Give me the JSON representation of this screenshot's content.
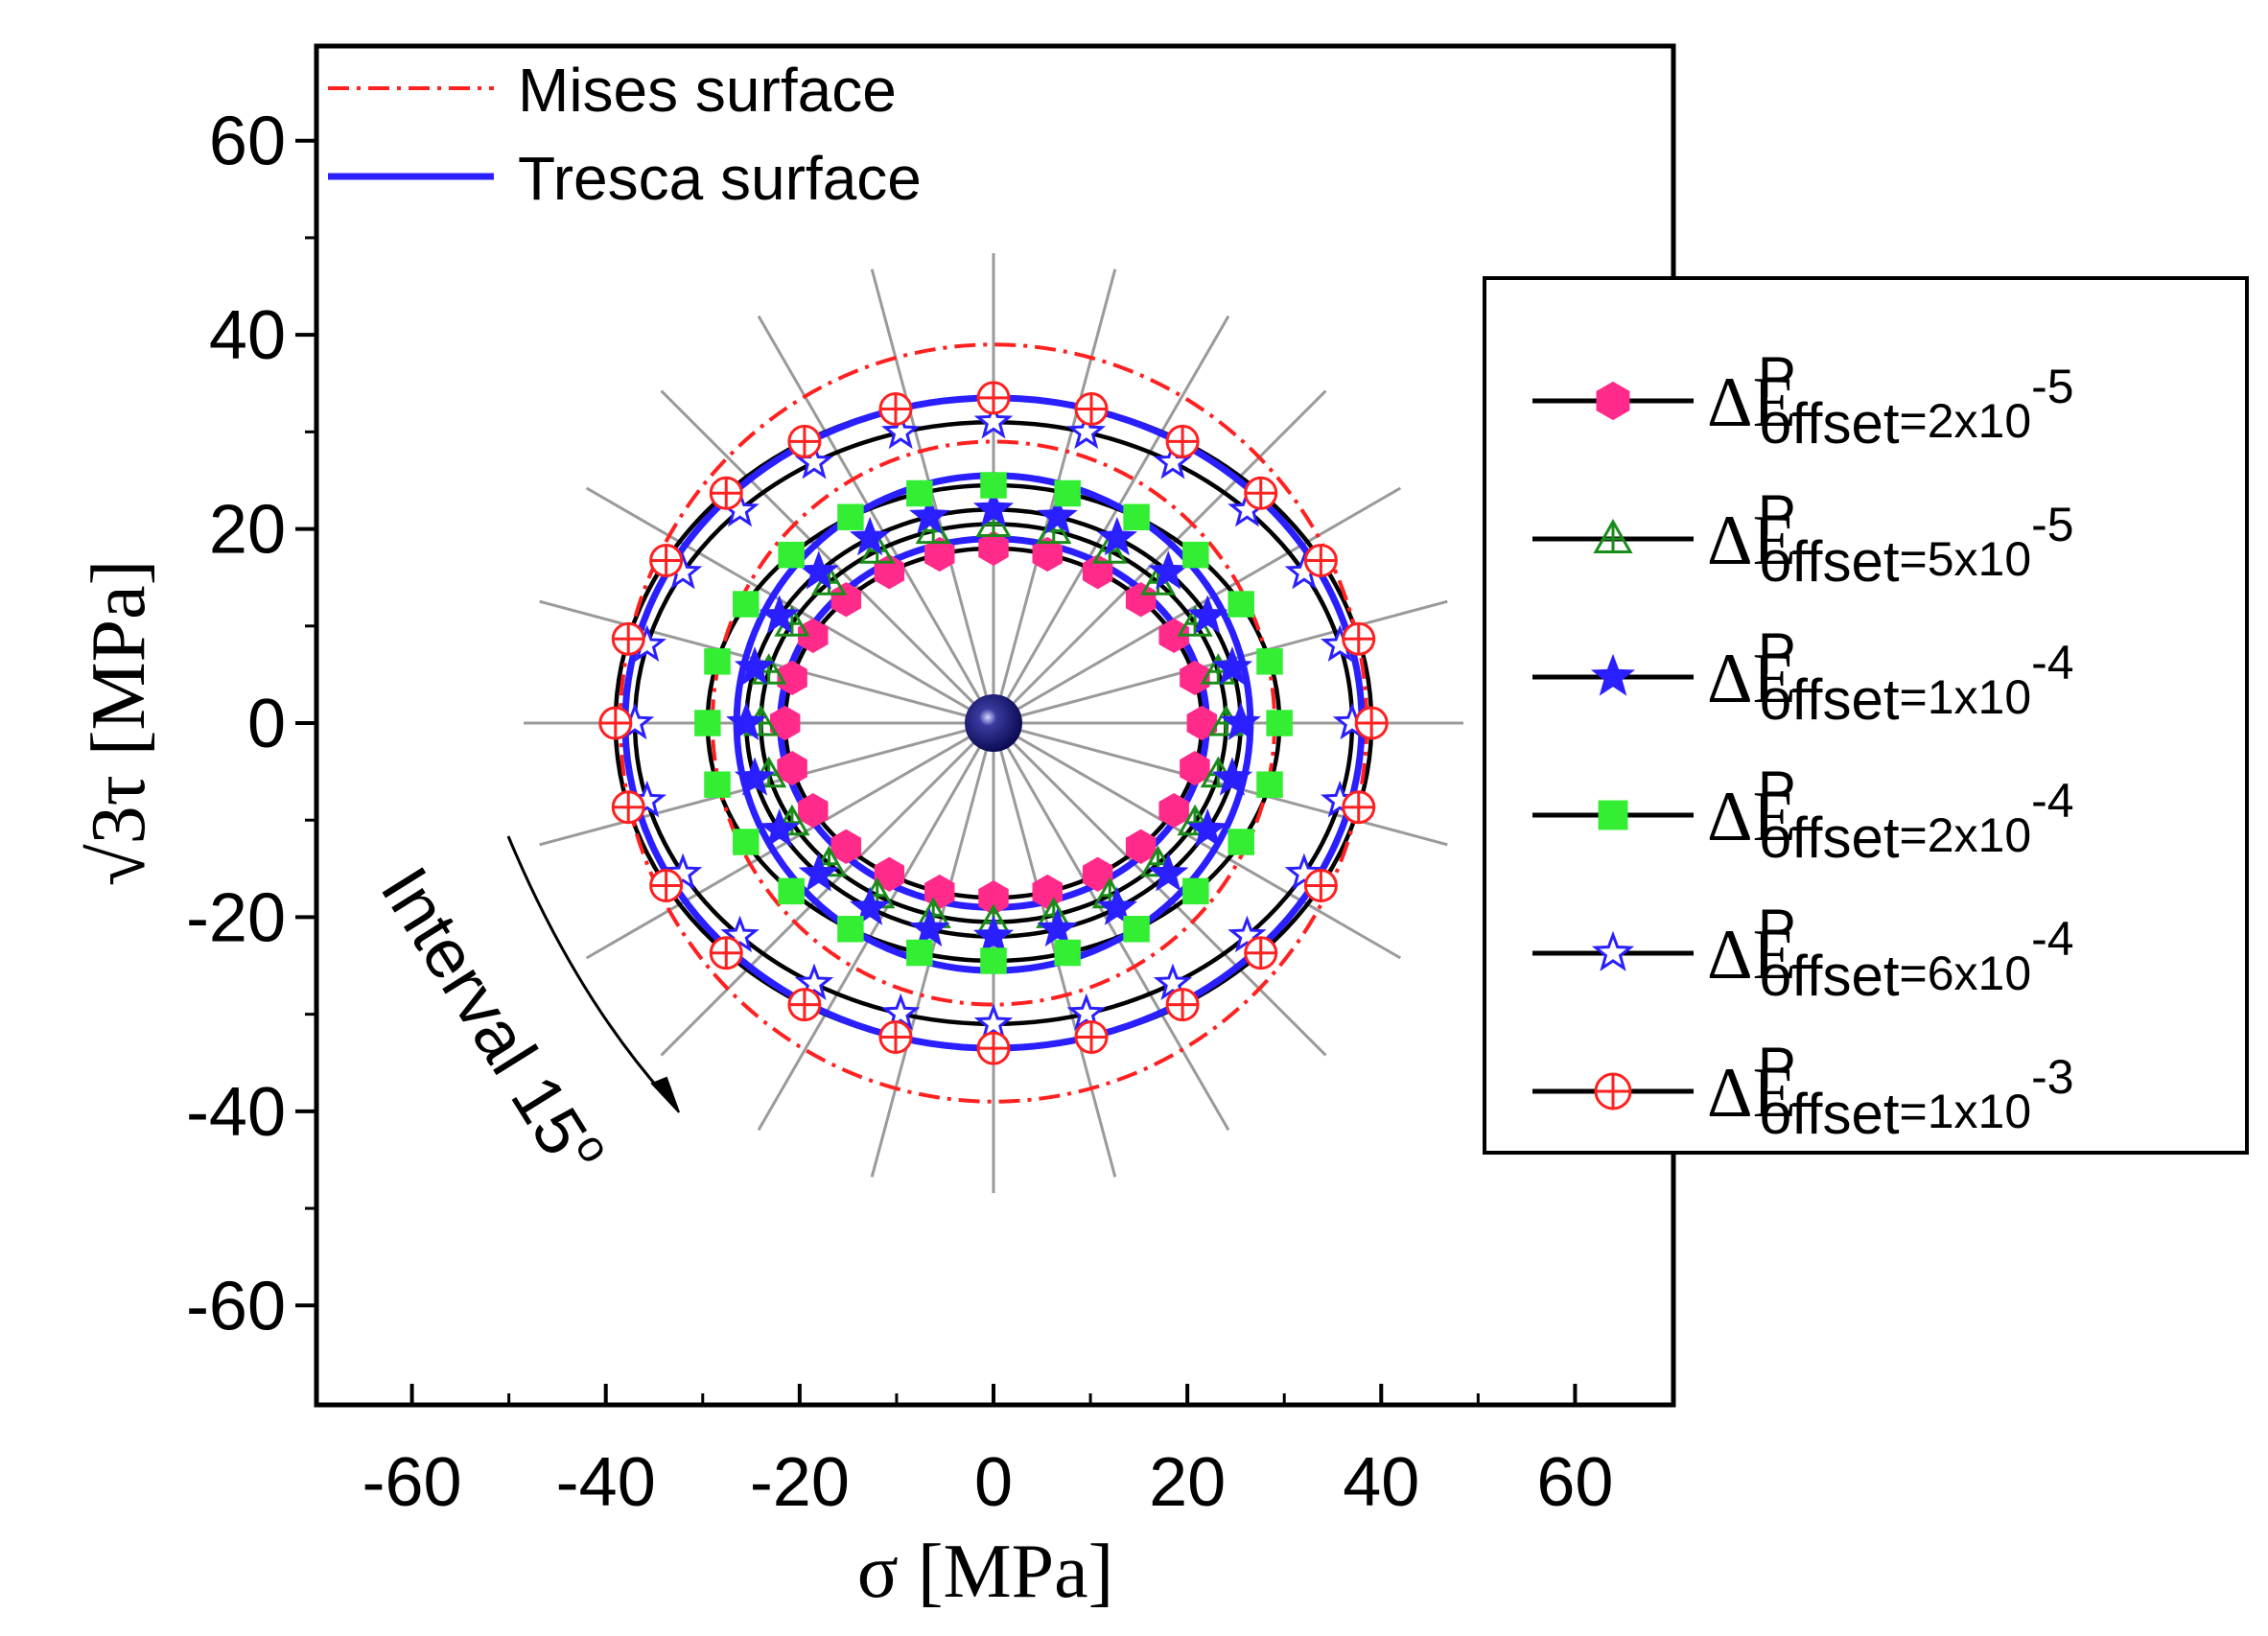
{
  "chart_data": {
    "type": "scatter",
    "xlabel": "σ [MPa]",
    "ylabel": "√3τ [MPa]",
    "xlim": [
      -70,
      70
    ],
    "ylim": [
      -70,
      70
    ],
    "xticks": [
      -60,
      -40,
      -20,
      0,
      20,
      40,
      60
    ],
    "yticks": [
      -60,
      -40,
      -20,
      0,
      20,
      40,
      60
    ],
    "grid": false,
    "radial_lines_interval_deg": 15,
    "center_point": [
      0,
      0
    ],
    "annotation": "Interval 15",
    "annotation_degree_symbol": "o",
    "reference_curves": [
      {
        "name": "Mises surface",
        "color": "#ff2020",
        "style": "dash-dot",
        "ellipses": [
          {
            "a": 29,
            "b": 29
          },
          {
            "a": 38.5,
            "b": 39
          }
        ]
      },
      {
        "name": "Tresca surface",
        "color": "#2a1fff",
        "style": "solid",
        "ellipses": [
          {
            "a": 22,
            "b": 19
          },
          {
            "a": 26.5,
            "b": 25.5
          },
          {
            "a": 38,
            "b": 33.5
          }
        ]
      }
    ],
    "series": [
      {
        "label_main": "ΔE",
        "label_sup": "P",
        "label_sub": "offset",
        "label_value": "=2x10",
        "label_exp": "-5",
        "marker": "hexagon",
        "fill": "#ff2a8a",
        "stroke": "#ff2a8a",
        "a": 21.5,
        "b": 18,
        "center": [
          0,
          0
        ]
      },
      {
        "label_main": "ΔE",
        "label_sup": "P",
        "label_sub": "offset",
        "label_value": "=5x10",
        "label_exp": "-5",
        "marker": "triangle-open",
        "fill": "none",
        "stroke": "#1a8c1a",
        "a": 24,
        "b": 20.5,
        "center": [
          0,
          0
        ]
      },
      {
        "label_main": "ΔE",
        "label_sup": "P",
        "label_sub": "offset",
        "label_value": "=1x10",
        "label_exp": "-4",
        "marker": "star",
        "fill": "#2a1fff",
        "stroke": "#2a1fff",
        "a": 25.5,
        "b": 22,
        "center": [
          0,
          0
        ]
      },
      {
        "label_main": "ΔE",
        "label_sup": "P",
        "label_sub": "offset",
        "label_value": "=2x10",
        "label_exp": "-4",
        "marker": "square",
        "fill": "#33ee33",
        "stroke": "#33ee33",
        "a": 29.5,
        "b": 24.5,
        "center": [
          0,
          0
        ]
      },
      {
        "label_main": "ΔE",
        "label_sup": "P",
        "label_sub": "offset",
        "label_value": "=6x10",
        "label_exp": "-4",
        "marker": "star-open",
        "fill": "none",
        "stroke": "#2a1fff",
        "a": 37,
        "b": 31,
        "center": [
          0,
          0
        ]
      },
      {
        "label_main": "ΔE",
        "label_sup": "P",
        "label_sub": "offset",
        "label_value": "=1x10",
        "label_exp": "-3",
        "marker": "circle-plus",
        "fill": "none",
        "stroke": "#ff2020",
        "a": 39,
        "b": 33.5,
        "center": [
          0,
          0
        ]
      }
    ]
  }
}
